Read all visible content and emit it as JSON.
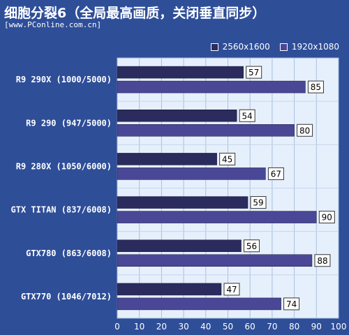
{
  "header": {
    "title": "细胞分裂6（全局最高画质，关闭垂直同步）",
    "subtitle": "[www.PConline.com.cn]"
  },
  "colors": {
    "background": "#2e4e98",
    "plot_background": "#e6f0fc",
    "series_1": "#2b2b5e",
    "series_2": "#4a4796",
    "label_box": "#ffffff"
  },
  "chart_data": {
    "type": "bar",
    "orientation": "horizontal",
    "categories": [
      "R9 290X (1000/5000)",
      "R9 290 (947/5000)",
      "R9 280X (1050/6000)",
      "GTX TITAN (837/6008)",
      "GTX780 (863/6008)",
      "GTX770 (1046/7012)"
    ],
    "series": [
      {
        "name": "2560x1600",
        "values": [
          57,
          54,
          45,
          59,
          56,
          47
        ]
      },
      {
        "name": "1920x1080",
        "values": [
          85,
          80,
          67,
          90,
          88,
          74
        ]
      }
    ],
    "xlim": [
      0,
      100
    ],
    "xticks": [
      0,
      10,
      20,
      30,
      40,
      50,
      60,
      70,
      80,
      90,
      100
    ],
    "grid": true,
    "legend_position": "top-right",
    "data_labels": true
  }
}
